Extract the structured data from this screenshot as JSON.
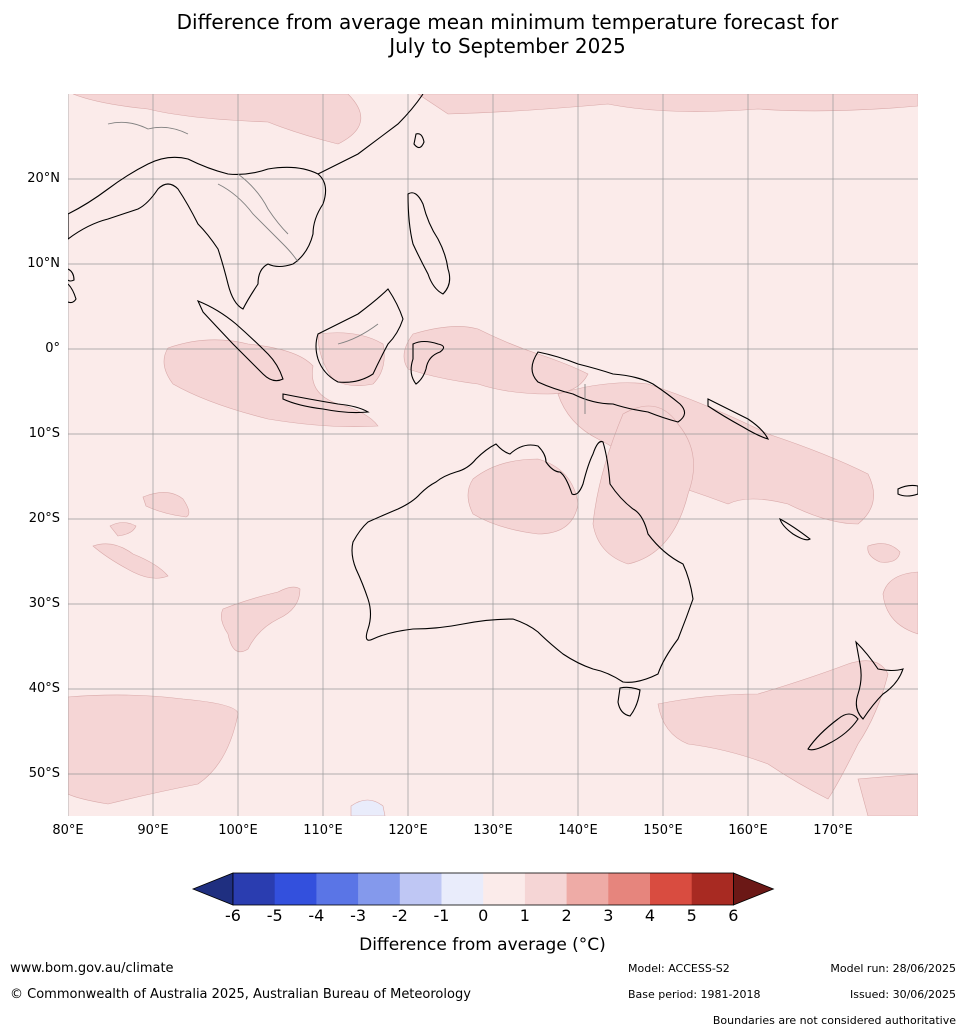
{
  "title": {
    "line1": "Difference from average mean minimum temperature forecast for",
    "line2": "July to September 2025"
  },
  "map": {
    "lat_labels": [
      "20°N",
      "10°N",
      "0°",
      "10°S",
      "20°S",
      "30°S",
      "40°S",
      "50°S"
    ],
    "lon_labels": [
      "80°E",
      "90°E",
      "100°E",
      "110°E",
      "120°E",
      "130°E",
      "140°E",
      "150°E",
      "160°E",
      "170°E"
    ],
    "background_category": "0 to 1",
    "colors": {
      "cat_0_1": "#fbebea",
      "cat_1_2": "#f5d5d5",
      "cat_m1_0": "#e9ecfb",
      "coast": "#000000",
      "borders": "#808080",
      "grid": "#999999"
    }
  },
  "colorbar": {
    "ticks": [
      "-6",
      "-5",
      "-4",
      "-3",
      "-2",
      "-1",
      "0",
      "1",
      "2",
      "3",
      "4",
      "5",
      "6"
    ],
    "colors": [
      "#1f2f80",
      "#2a3db0",
      "#3350dd",
      "#5a75e6",
      "#8499ec",
      "#bfc7f4",
      "#e9ecfb",
      "#fbebea",
      "#f5d5d5",
      "#eeaba6",
      "#e6857d",
      "#d94c40",
      "#a82a22",
      "#6b1816"
    ],
    "label": "Difference from average (°C)"
  },
  "footer": {
    "website": "www.bom.gov.au/climate",
    "copyright": "© Commonwealth of Australia 2025, Australian Bureau of Meteorology",
    "model": "Model: ACCESS-S2",
    "base_period": "Base period: 1981-2018",
    "model_run": "Model run: 28/06/2025",
    "issued": "Issued: 30/06/2025",
    "disclaimer": "Boundaries are not considered authoritative"
  }
}
